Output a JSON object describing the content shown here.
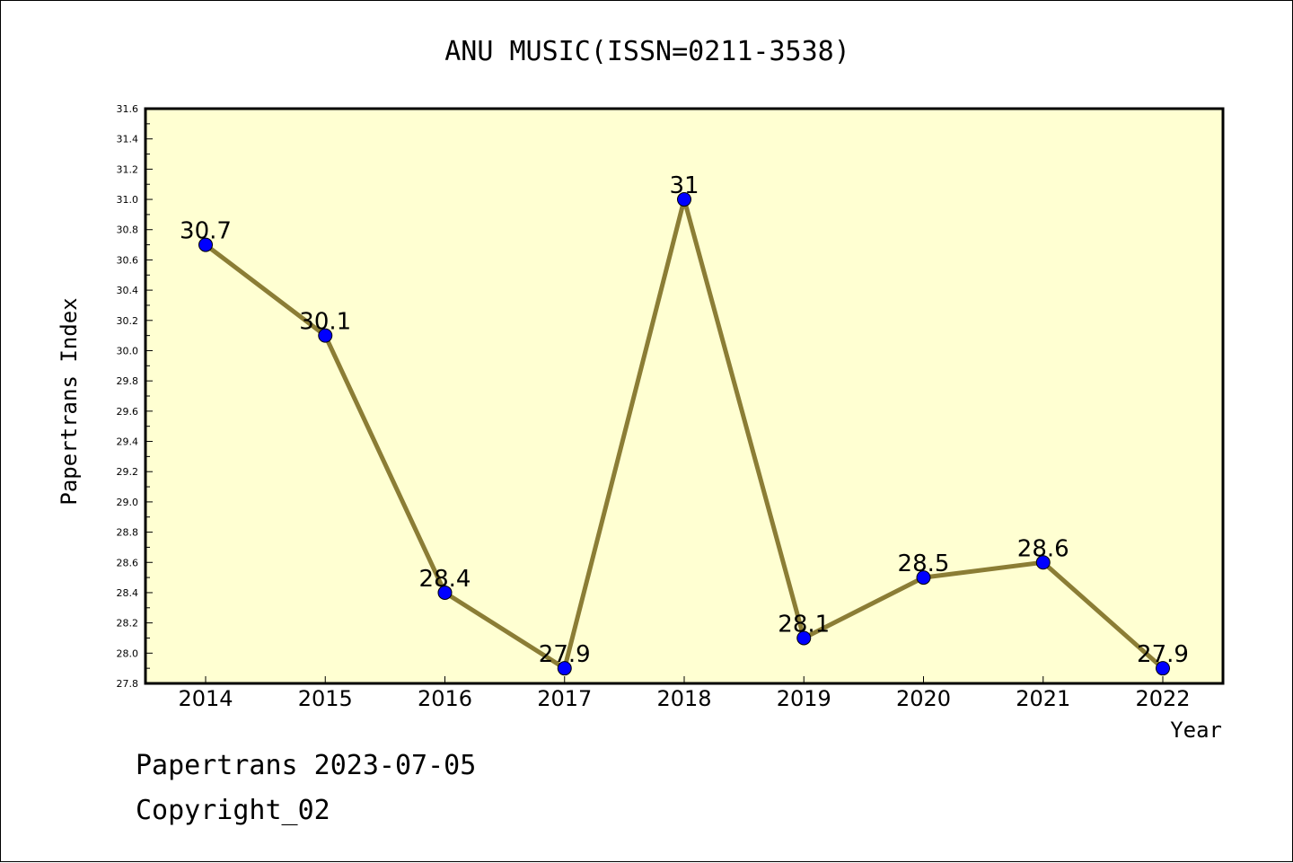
{
  "chart_data": {
    "type": "line",
    "title": "ANU MUSIC(ISSN=0211-3538)",
    "xlabel": "Year",
    "ylabel": "Papertrans Index",
    "categories": [
      "2014",
      "2015",
      "2016",
      "2017",
      "2018",
      "2019",
      "2020",
      "2021",
      "2022"
    ],
    "series": [
      {
        "values": [
          30.7,
          30.1,
          28.4,
          27.9,
          31,
          28.1,
          28.5,
          28.6,
          27.9
        ],
        "data_labels": [
          "30.7",
          "30.1",
          "28.4",
          "27.9",
          "31",
          "28.1",
          "28.5",
          "28.6",
          "27.9"
        ]
      }
    ],
    "ylim": [
      27.8,
      31.6
    ],
    "yticks": [
      "27.8",
      "28.0",
      "28.2",
      "28.4",
      "28.6",
      "28.8",
      "29.0",
      "29.2",
      "29.4",
      "29.6",
      "29.8",
      "30.0",
      "30.2",
      "30.4",
      "30.6",
      "30.8",
      "31.0",
      "31.2",
      "31.4",
      "31.6"
    ],
    "grid": false,
    "colors": {
      "plot_background": "#ffffd2",
      "line": "#8b7d35",
      "marker": "#0000ff"
    }
  },
  "footer": {
    "line1": "Papertrans 2023-07-05",
    "line2": "Copyright_02"
  }
}
